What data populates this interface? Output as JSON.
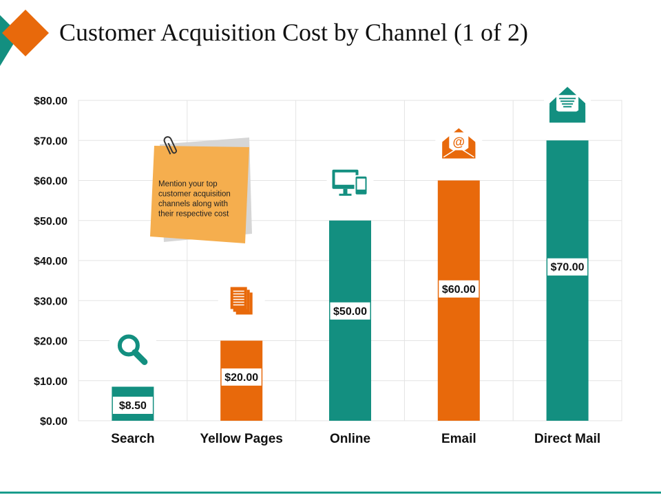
{
  "title": "Customer Acquisition Cost by Channel (1 of 2)",
  "note": {
    "lines": [
      "Mention your top",
      "customer acquisition",
      "channels along with",
      "their respective cost"
    ],
    "icon": "paperclip-icon"
  },
  "colors": {
    "teal": "#138f80",
    "orange": "#e8690b",
    "note": "#f5ae4e",
    "grid": "#e3e3e3"
  },
  "chart_data": {
    "type": "bar",
    "title": "Customer Acquisition Cost by Channel (1 of 2)",
    "xlabel": "",
    "ylabel": "",
    "categories": [
      "Search",
      "Yellow Pages",
      "Online",
      "Email",
      "Direct Mail"
    ],
    "values": [
      8.5,
      20,
      50,
      60,
      70
    ],
    "data_labels": [
      "$8.50",
      "$20.00",
      "$50.00",
      "$60.00",
      "$70.00"
    ],
    "bar_colors": [
      "#138f80",
      "#e8690b",
      "#138f80",
      "#e8690b",
      "#138f80"
    ],
    "icons": [
      "magnifier-icon",
      "documents-icon",
      "devices-icon",
      "email-at-icon",
      "mail-envelope-icon"
    ],
    "ylim": [
      0,
      80
    ],
    "yticks": [
      0,
      10,
      20,
      30,
      40,
      50,
      60,
      70,
      80
    ],
    "ytick_labels": [
      "$0.00",
      "$10.00",
      "$20.00",
      "$30.00",
      "$40.00",
      "$50.00",
      "$60.00",
      "$70.00",
      "$80.00"
    ],
    "grid": true,
    "legend": "none"
  }
}
